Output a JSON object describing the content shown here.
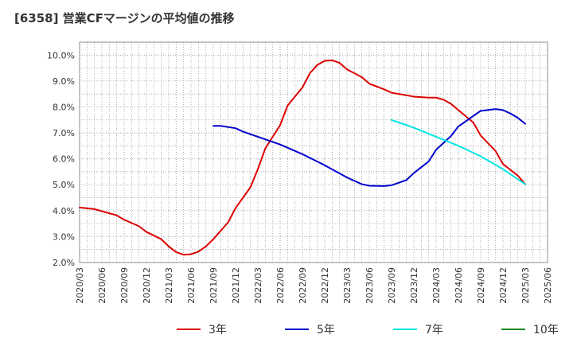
{
  "chart_data": {
    "type": "line",
    "title": "[6358]  営業CFマージンの平均値の推移",
    "xlabel": "",
    "ylabel": "",
    "ylim": [
      2.0,
      10.5
    ],
    "y_ticks": [
      "2.0%",
      "3.0%",
      "4.0%",
      "5.0%",
      "6.0%",
      "7.0%",
      "8.0%",
      "9.0%",
      "10.0%"
    ],
    "y_tick_values": [
      2,
      3,
      4,
      5,
      6,
      7,
      8,
      9,
      10
    ],
    "x_ticks": [
      "2020/03",
      "2020/06",
      "2020/09",
      "2020/12",
      "2021/03",
      "2021/06",
      "2021/09",
      "2021/12",
      "2022/03",
      "2022/06",
      "2022/09",
      "2022/12",
      "2023/03",
      "2023/06",
      "2023/09",
      "2023/12",
      "2024/03",
      "2024/06",
      "2024/09",
      "2024/12",
      "2025/03",
      "2025/06"
    ],
    "grid": true,
    "legend_position": "bottom",
    "series": [
      {
        "name": "3年",
        "color": "#dd0000",
        "points": [
          [
            "2020/03",
            4.12
          ],
          [
            "2020/05",
            4.06
          ],
          [
            "2020/06",
            3.98
          ],
          [
            "2020/08",
            3.82
          ],
          [
            "2020/09",
            3.65
          ],
          [
            "2020/11",
            3.4
          ],
          [
            "2020/12",
            3.18
          ],
          [
            "2021/02",
            2.9
          ],
          [
            "2021/03",
            2.62
          ],
          [
            "2021/04",
            2.4
          ],
          [
            "2021/05",
            2.3
          ],
          [
            "2021/06",
            2.32
          ],
          [
            "2021/07",
            2.42
          ],
          [
            "2021/08",
            2.62
          ],
          [
            "2021/09",
            2.9
          ],
          [
            "2021/11",
            3.55
          ],
          [
            "2021/12",
            4.1
          ],
          [
            "2022/02",
            4.9
          ],
          [
            "2022/03",
            5.6
          ],
          [
            "2022/04",
            6.4
          ],
          [
            "2022/06",
            7.3
          ],
          [
            "2022/07",
            8.05
          ],
          [
            "2022/09",
            8.75
          ],
          [
            "2022/10",
            9.3
          ],
          [
            "2022/11",
            9.62
          ],
          [
            "2022/12",
            9.78
          ],
          [
            "2023/01",
            9.8
          ],
          [
            "2023/02",
            9.7
          ],
          [
            "2023/03",
            9.45
          ],
          [
            "2023/05",
            9.15
          ],
          [
            "2023/06",
            8.9
          ],
          [
            "2023/08",
            8.68
          ],
          [
            "2023/09",
            8.55
          ],
          [
            "2023/11",
            8.45
          ],
          [
            "2023/12",
            8.4
          ],
          [
            "2024/02",
            8.36
          ],
          [
            "2024/03",
            8.36
          ],
          [
            "2024/04",
            8.28
          ],
          [
            "2024/05",
            8.12
          ],
          [
            "2024/06",
            7.88
          ],
          [
            "2024/08",
            7.4
          ],
          [
            "2024/09",
            6.9
          ],
          [
            "2024/11",
            6.3
          ],
          [
            "2024/12",
            5.8
          ],
          [
            "2025/02",
            5.35
          ],
          [
            "2025/03",
            5.02
          ]
        ]
      },
      {
        "name": "5年",
        "color": "#0000cc",
        "points": [
          [
            "2021/09",
            7.27
          ],
          [
            "2021/10",
            7.27
          ],
          [
            "2021/12",
            7.18
          ],
          [
            "2022/01",
            7.05
          ],
          [
            "2022/03",
            6.85
          ],
          [
            "2022/06",
            6.55
          ],
          [
            "2022/09",
            6.18
          ],
          [
            "2022/12",
            5.75
          ],
          [
            "2023/03",
            5.28
          ],
          [
            "2023/05",
            5.02
          ],
          [
            "2023/06",
            4.96
          ],
          [
            "2023/08",
            4.95
          ],
          [
            "2023/09",
            4.98
          ],
          [
            "2023/11",
            5.18
          ],
          [
            "2023/12",
            5.45
          ],
          [
            "2024/02",
            5.9
          ],
          [
            "2024/03",
            6.35
          ],
          [
            "2024/05",
            6.88
          ],
          [
            "2024/06",
            7.25
          ],
          [
            "2024/08",
            7.65
          ],
          [
            "2024/09",
            7.85
          ],
          [
            "2024/11",
            7.92
          ],
          [
            "2024/12",
            7.88
          ],
          [
            "2025/01",
            7.75
          ],
          [
            "2025/02",
            7.58
          ],
          [
            "2025/03",
            7.35
          ]
        ]
      },
      {
        "name": "7年",
        "color": "#00e5e5",
        "points": [
          [
            "2023/09",
            7.5
          ],
          [
            "2023/12",
            7.2
          ],
          [
            "2024/03",
            6.85
          ],
          [
            "2024/06",
            6.5
          ],
          [
            "2024/09",
            6.1
          ],
          [
            "2024/12",
            5.6
          ],
          [
            "2025/03",
            5.02
          ]
        ]
      },
      {
        "name": "10年",
        "color": "#228b22",
        "points": []
      }
    ]
  }
}
